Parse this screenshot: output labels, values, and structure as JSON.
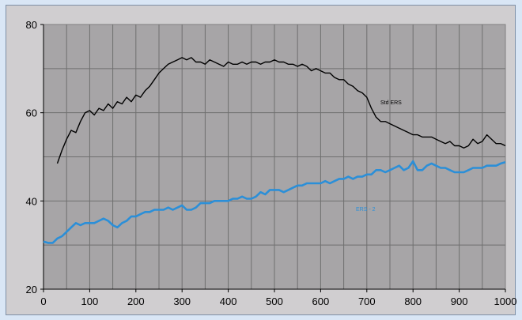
{
  "chart_data": {
    "type": "line",
    "title": "",
    "xlabel": "",
    "ylabel": "",
    "xlim": [
      0,
      1000
    ],
    "ylim": [
      20,
      80
    ],
    "x_ticks": [
      "0",
      "100",
      "200",
      "300",
      "400",
      "500",
      "600",
      "700",
      "800",
      "900",
      "1000"
    ],
    "y_ticks": [
      "20",
      "40",
      "60",
      "80"
    ],
    "grid": true,
    "x_minor_step": 50,
    "y_minor_step": 10,
    "legend": "none",
    "series": [
      {
        "name": "Std ERS",
        "color": "#000000",
        "x": [
          30,
          40,
          50,
          60,
          70,
          80,
          90,
          100,
          110,
          120,
          130,
          140,
          150,
          160,
          170,
          180,
          190,
          200,
          210,
          220,
          230,
          240,
          250,
          260,
          270,
          280,
          290,
          300,
          310,
          320,
          330,
          340,
          350,
          360,
          370,
          380,
          390,
          400,
          410,
          420,
          430,
          440,
          450,
          460,
          470,
          480,
          490,
          500,
          510,
          520,
          530,
          540,
          550,
          560,
          570,
          580,
          590,
          600,
          610,
          620,
          630,
          640,
          650,
          660,
          670,
          680,
          690,
          700,
          710,
          720,
          730,
          740,
          750,
          760,
          770,
          780,
          790,
          800,
          810,
          820,
          830,
          840,
          850,
          860,
          870,
          880,
          890,
          900,
          910,
          920,
          930,
          940,
          950,
          960,
          970,
          980,
          990,
          1000
        ],
        "y": [
          48.5,
          51.5,
          54,
          56,
          55.5,
          58,
          60,
          60.5,
          59.5,
          61,
          60.5,
          62,
          61,
          62.5,
          62,
          63.5,
          62.5,
          64,
          63.5,
          65,
          66,
          67.5,
          69,
          70,
          71,
          71.5,
          72,
          72.5,
          72,
          72.5,
          71.5,
          71.5,
          71,
          72,
          71.5,
          71,
          70.5,
          71.5,
          71,
          71,
          71.5,
          71,
          71.5,
          71.5,
          71,
          71.5,
          71.5,
          72,
          71.5,
          71.5,
          71,
          71,
          70.5,
          71,
          70.5,
          69.5,
          70,
          69.5,
          69,
          69,
          68,
          67.5,
          67.5,
          66.5,
          66,
          65,
          64.5,
          63.5,
          61,
          59,
          58,
          58,
          57.5,
          57,
          56.5,
          56,
          55.5,
          55,
          55,
          54.5,
          54.5,
          54.5,
          54,
          53.5,
          53,
          53.5,
          52.5,
          52.5,
          52,
          52.5,
          54,
          53,
          53.5,
          55,
          54,
          53,
          53,
          52.5
        ]
      },
      {
        "name": "ERS - 2",
        "color": "#2b8fd8",
        "x": [
          0,
          10,
          20,
          30,
          40,
          50,
          60,
          70,
          80,
          90,
          100,
          110,
          120,
          130,
          140,
          150,
          160,
          170,
          180,
          190,
          200,
          210,
          220,
          230,
          240,
          250,
          260,
          270,
          280,
          290,
          300,
          310,
          320,
          330,
          340,
          350,
          360,
          370,
          380,
          390,
          400,
          410,
          420,
          430,
          440,
          450,
          460,
          470,
          480,
          490,
          500,
          510,
          520,
          530,
          540,
          550,
          560,
          570,
          580,
          590,
          600,
          610,
          620,
          630,
          640,
          650,
          660,
          670,
          680,
          690,
          700,
          710,
          720,
          730,
          740,
          750,
          760,
          770,
          780,
          790,
          800,
          810,
          820,
          830,
          840,
          850,
          860,
          870,
          880,
          890,
          900,
          910,
          920,
          930,
          940,
          950,
          960,
          970,
          980,
          990,
          1000
        ],
        "y": [
          30.8,
          30.5,
          30.5,
          31.5,
          32,
          33,
          34,
          35,
          34.5,
          35,
          35,
          35,
          35.5,
          36,
          35.5,
          34.5,
          34,
          35,
          35.5,
          36.5,
          36.5,
          37,
          37.5,
          37.5,
          38,
          38,
          38,
          38.5,
          38,
          38.5,
          39,
          38,
          38,
          38.5,
          39.5,
          39.5,
          39.5,
          40,
          40,
          40,
          40,
          40.5,
          40.5,
          41,
          40.5,
          40.5,
          41,
          42,
          41.5,
          42.5,
          42.5,
          42.5,
          42,
          42.5,
          43,
          43.5,
          43.5,
          44,
          44,
          44,
          44,
          44.5,
          44,
          44.5,
          45,
          45,
          45.5,
          45,
          45.5,
          45.5,
          46,
          46,
          47,
          47,
          46.5,
          47,
          47.5,
          48,
          47,
          47.5,
          49,
          47,
          47,
          48,
          48.5,
          48,
          47.5,
          47.5,
          47,
          46.5,
          46.5,
          46.5,
          47,
          47.5,
          47.5,
          47.5,
          48,
          48,
          48,
          48.5,
          48.8
        ]
      }
    ]
  }
}
